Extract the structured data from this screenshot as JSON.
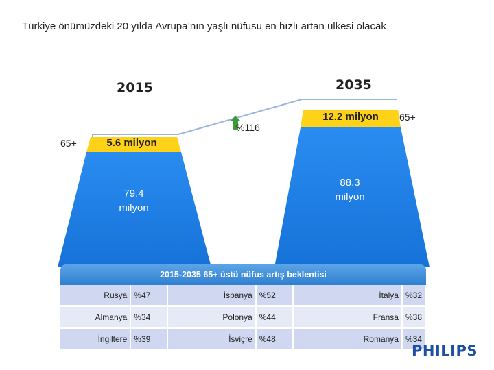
{
  "slide": {
    "title": "Türkiye önümüzdeki 20 yılda Avrupa’nın yaşlı nüfusu en hızlı artan ülkesi olacak"
  },
  "left": {
    "year": "2015",
    "age_label": "65+",
    "elderly": "5.6 milyon",
    "total_line1": "79.4",
    "total_line2": "milyon"
  },
  "right": {
    "year": "2035",
    "age_label": "65+",
    "elderly": "12.2 milyon",
    "total_line1": "88.3",
    "total_line2": "milyon"
  },
  "growth": {
    "label": "%116",
    "icon": "up-arrow-icon",
    "color": "#3a9a3a"
  },
  "table": {
    "header": "2015-2035 65+ üstü nüfus artış beklentisi",
    "rows": [
      [
        {
          "country": "Rusya",
          "value": "%47"
        },
        {
          "country": "İspanya",
          "value": "%52"
        },
        {
          "country": "İtalya",
          "value": "%32"
        }
      ],
      [
        {
          "country": "Almanya",
          "value": "%34"
        },
        {
          "country": "Polonya",
          "value": "%44"
        },
        {
          "country": "Fransa",
          "value": "%38"
        }
      ],
      [
        {
          "country": "İngiltere",
          "value": "%39"
        },
        {
          "country": "İsviçre",
          "value": "%48"
        },
        {
          "country": "Romanya",
          "value": "%34"
        }
      ]
    ]
  },
  "logo": {
    "text": "PHILIPS"
  },
  "colors": {
    "blue": "#1f7fe6",
    "yellow": "#ffd21a",
    "outline": "#9ab4e0",
    "logo": "#1f4fa3"
  }
}
